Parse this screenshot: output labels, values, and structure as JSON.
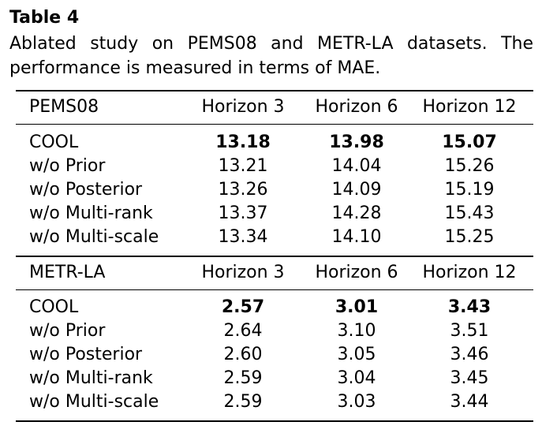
{
  "caption": {
    "title": "Table 4",
    "text": "Ablated study on PEMS08 and METR-LA datasets. The performance is measured in terms of MAE."
  },
  "sections": [
    {
      "header": [
        "PEMS08",
        "Horizon 3",
        "Horizon 6",
        "Horizon 12"
      ],
      "rows": [
        [
          "COOL",
          "13.18",
          "13.98",
          "15.07"
        ],
        [
          "w/o Prior",
          "13.21",
          "14.04",
          "15.26"
        ],
        [
          "w/o Posterior",
          "13.26",
          "14.09",
          "15.19"
        ],
        [
          "w/o Multi-rank",
          "13.37",
          "14.28",
          "15.43"
        ],
        [
          "w/o Multi-scale",
          "13.34",
          "14.10",
          "15.25"
        ]
      ]
    },
    {
      "header": [
        "METR-LA",
        "Horizon 3",
        "Horizon 6",
        "Horizon 12"
      ],
      "rows": [
        [
          "COOL",
          "2.57",
          "3.01",
          "3.43"
        ],
        [
          "w/o Prior",
          "2.64",
          "3.10",
          "3.51"
        ],
        [
          "w/o Posterior",
          "2.60",
          "3.05",
          "3.46"
        ],
        [
          "w/o Multi-rank",
          "2.59",
          "3.04",
          "3.45"
        ],
        [
          "w/o Multi-scale",
          "2.59",
          "3.03",
          "3.44"
        ]
      ]
    }
  ]
}
